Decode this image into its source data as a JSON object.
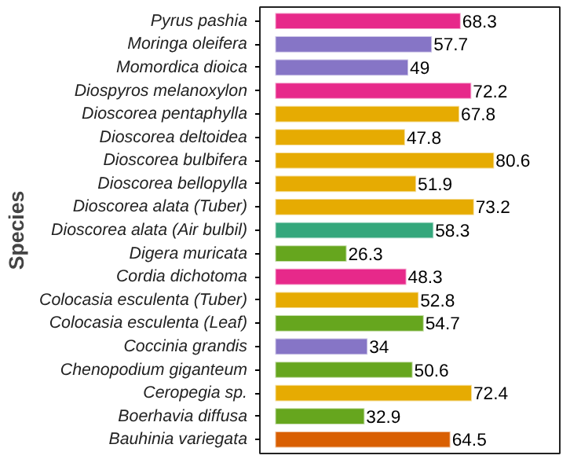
{
  "chart_data": {
    "type": "bar",
    "orientation": "horizontal",
    "ylabel": "Species",
    "categories": [
      "Pyrus pashia",
      "Moringa oleifera",
      "Momordica dioica",
      "Diospyros melanoxylon",
      "Dioscorea pentaphylla",
      "Dioscorea deltoidea",
      "Dioscorea bulbifera",
      "Dioscorea bellopylla",
      "Dioscorea alata (Tuber)",
      "Dioscorea alata (Air bulbil)",
      "Digera muricata",
      "Cordia dichotoma",
      "Colocasia esculenta (Tuber)",
      "Colocasia esculenta (Leaf)",
      "Coccinia grandis",
      "Chenopodium giganteum",
      "Ceropegia sp.",
      "Boerhavia diffusa",
      "Bauhinia variegata"
    ],
    "values": [
      68.3,
      57.7,
      49,
      72.2,
      67.8,
      47.8,
      80.6,
      51.9,
      73.2,
      58.3,
      26.3,
      48.3,
      52.8,
      54.7,
      34,
      50.6,
      72.4,
      32.9,
      64.5
    ],
    "colors": [
      "#e7298a",
      "#8675c6",
      "#8675c6",
      "#e7298a",
      "#e6ab02",
      "#e6ab02",
      "#e6ab02",
      "#e6ab02",
      "#e6ab02",
      "#34a77c",
      "#66a61e",
      "#e7298a",
      "#e6ab02",
      "#66a61e",
      "#8675c6",
      "#66a61e",
      "#e6ab02",
      "#66a61e",
      "#d95f02"
    ],
    "data_labels": true,
    "grid": false,
    "tick_labels": "y"
  }
}
